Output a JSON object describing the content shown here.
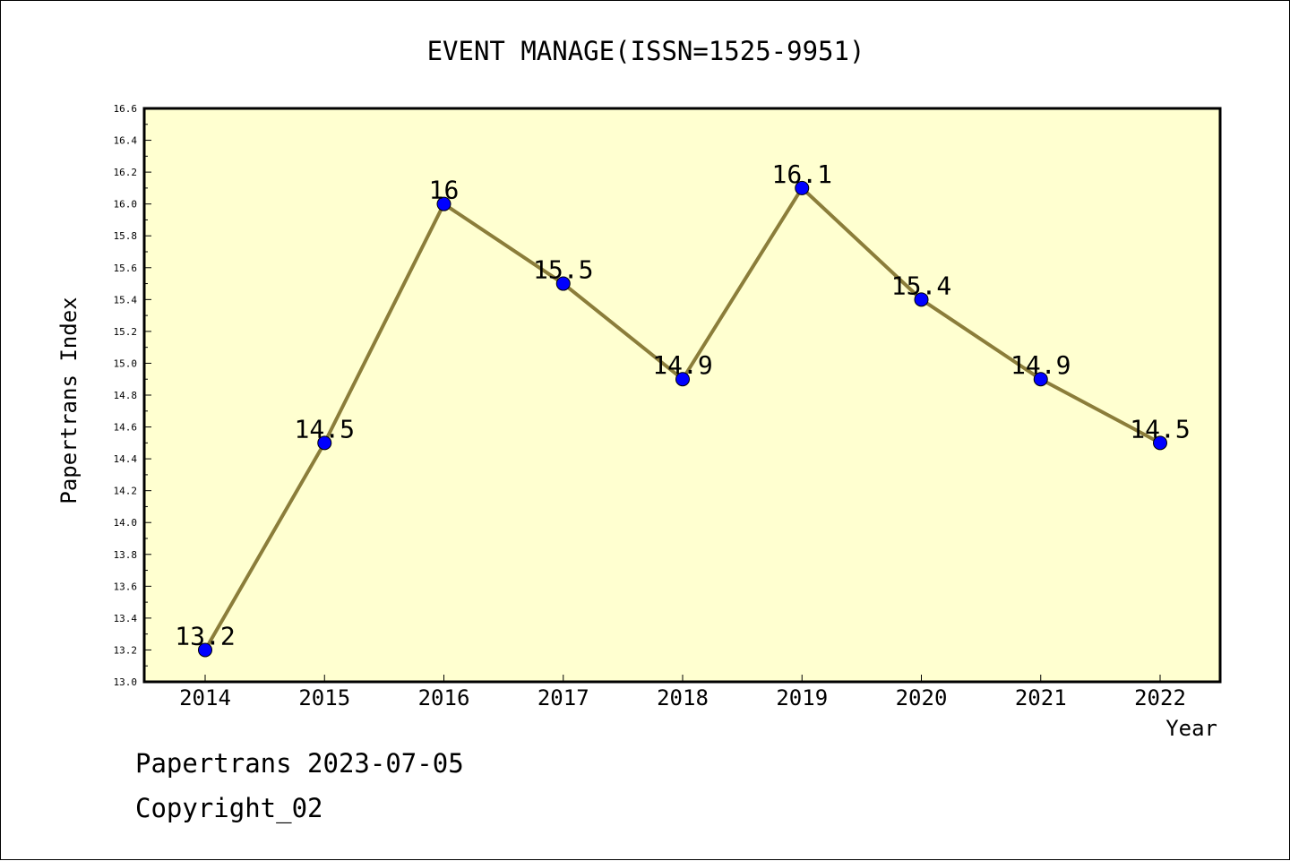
{
  "chart_data": {
    "type": "line",
    "title": "EVENT MANAGE(ISSN=1525-9951)",
    "xlabel": "Year",
    "ylabel": "Papertrans Index",
    "categories": [
      "2014",
      "2015",
      "2016",
      "2017",
      "2018",
      "2019",
      "2020",
      "2021",
      "2022"
    ],
    "series": [
      {
        "values": [
          13.2,
          14.5,
          16.0,
          15.5,
          14.9,
          16.1,
          15.4,
          14.9,
          14.5
        ],
        "data_labels": [
          "13.2",
          "14.5",
          "16",
          "15.5",
          "14.9",
          "16.1",
          "15.4",
          "14.9",
          "14.5"
        ]
      }
    ],
    "ylim": [
      13.0,
      16.6
    ],
    "ytick_labels": [
      "13.0",
      "13.2",
      "13.4",
      "13.6",
      "13.8",
      "14.0",
      "14.2",
      "14.4",
      "14.6",
      "14.8",
      "15.0",
      "15.2",
      "15.4",
      "15.6",
      "15.8",
      "16.0",
      "16.2",
      "16.4",
      "16.6"
    ],
    "grid": false,
    "colors": {
      "plot_background": "#ffffd0",
      "line": "#8b7d3a",
      "marker": "#0000ff"
    }
  },
  "footer": {
    "line1": "Papertrans 2023-07-05",
    "line2": "Copyright_02"
  }
}
